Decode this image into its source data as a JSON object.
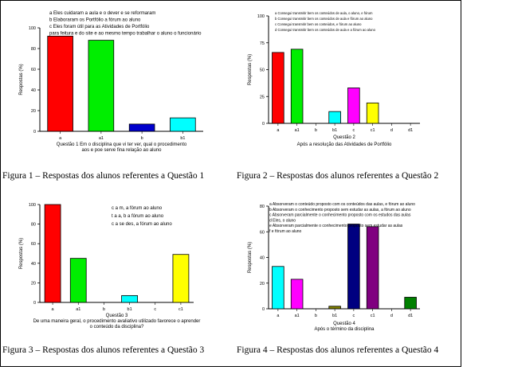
{
  "captions": [
    "Figura 1 – Respostas dos alunos referentes a Questão 1",
    "Figura 2 – Respostas dos alunos referentes a Questão 2",
    "Figura 3 – Respostas dos alunos referentes a Questão 3",
    "Figura 4 – Respostas dos alunos referentes a Questão 4"
  ],
  "chart_data": [
    {
      "type": "bar",
      "legend": [
        "a Eles cuidaram a aula e o dever e se reformaram",
        "b Elaboraram os Portfólio a fórum ao aluno",
        "c Eles foram útil para as Atividades de Portfólio",
        "para feitura e do site e ao mesmo tempo trabalhar o aluno o funcionário"
      ],
      "categories": [
        "a",
        "a1",
        "b",
        "b1"
      ],
      "values": [
        92,
        88,
        7,
        13
      ],
      "colors": [
        "#ff0000",
        "#00ee00",
        "#0000cc",
        "#00ffff"
      ],
      "ylabel": "Respostas (%)",
      "yticks": [
        0,
        20,
        40,
        60,
        80,
        100
      ],
      "ylim": [
        0,
        100
      ],
      "xlabel": "Questão 1 Em o disciplina que vi ter ver, qual o procedimento",
      "xlabel2": "aos e poe serve fina relação ao aluno"
    },
    {
      "type": "bar",
      "legend": [
        "a  Consegui transmitir bem os conteúdos de aula, o aluno, e fórum",
        "b  Consegui transmitir bem os conteúdos de aula e fórum ao aluno",
        "c  Consegui transmitir bem os conteúdos, e fórum ao aluno",
        "d  Consegui transmitir bem os conteúdos de aula e a fórum ao aluno"
      ],
      "categories": [
        "a",
        "a1",
        "b",
        "b1",
        "c",
        "c1",
        "d",
        "d1"
      ],
      "values": [
        66,
        69,
        0,
        11,
        33,
        19,
        0,
        0
      ],
      "colors": [
        "#ff0000",
        "#00ee00",
        "#0000cc",
        "#00ffff",
        "#ff00ff",
        "#ffff00",
        "#000080",
        "#800080"
      ],
      "ylabel": "Respostas (%)",
      "yticks": [
        0,
        25,
        50,
        75,
        100
      ],
      "ylim": [
        0,
        100
      ],
      "xlabel": "Questão 2",
      "xlabel2": "Após a resolução das Atividades de Portfólio"
    },
    {
      "type": "bar",
      "legend": [
        "c a m, a fórum ao aluno",
        "t a a, b a fórum ao aluno",
        "c a se des, a fórum ao aluno"
      ],
      "categories": [
        "a",
        "a1",
        "b",
        "b1",
        "c",
        "c1"
      ],
      "values": [
        100,
        45,
        0,
        7,
        0,
        49
      ],
      "colors": [
        "#ff0000",
        "#00ee00",
        "#0000cc",
        "#00ffff",
        "#ff00ff",
        "#ffff00"
      ],
      "ylabel": "Respostas (%)",
      "yticks": [
        0,
        20,
        40,
        60,
        80,
        100
      ],
      "ylim": [
        0,
        100
      ],
      "xlabel": "Questão 3",
      "xlabel2": "De uma maneira geral, o procedimento avaliativo utilizado favorece o aprender",
      "xlabel3": "o conteúdo da disciplina?"
    },
    {
      "type": "bar",
      "legend": [
        "a  Absorveram o conteúdo proposto com os conteúdos das aulas, e fórum ao aluno",
        "b  Absorveram o conhecimento proposto sem estudar as aulas, a fórum ao aluno",
        "c  Absorveram parcialmente o conhecimento proposto com os estudos das aulas",
        "d  Eles, o aluno",
        "e  Absorveram parcialmente o conhecimento proposto sem estudar as aulas",
        "f  e fórum ao aluno"
      ],
      "categories": [
        "a",
        "a1",
        "b",
        "b1",
        "c",
        "c1",
        "d",
        "d1"
      ],
      "values": [
        33,
        23,
        0,
        2,
        66,
        64,
        0,
        9
      ],
      "colors": [
        "#00ffff",
        "#ff00ff",
        "#ffff00",
        "#808000",
        "#000080",
        "#800080",
        "#008080",
        "#008000"
      ],
      "ylabel": "Respostas (%)",
      "yticks": [
        0,
        20,
        40,
        60,
        80
      ],
      "ylim": [
        0,
        80
      ],
      "xlabel": "Questão 4",
      "xlabel2": "Após o término da disciplina"
    }
  ]
}
